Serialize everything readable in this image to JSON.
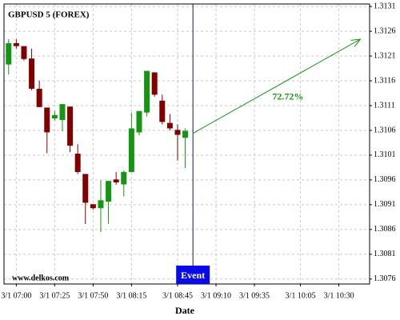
{
  "chart_data": {
    "type": "candlestick",
    "title": "GBPUSD 5 (FOREX)",
    "watermark": "www.delkos.com",
    "xlabel": "Date",
    "x": [
      415,
      420,
      425,
      430,
      435,
      440,
      445,
      450,
      455,
      460,
      465,
      470,
      475,
      480,
      485,
      490,
      495,
      500,
      505,
      510,
      515,
      520,
      525,
      530
    ],
    "open": [
      1.31193,
      1.31236,
      1.3123,
      1.31205,
      1.31144,
      1.31106,
      1.31084,
      1.31081,
      1.31108,
      1.31013,
      1.30972,
      1.30911,
      1.30903,
      1.30916,
      1.30961,
      1.30951,
      1.30976,
      1.31056,
      1.31096,
      1.31177,
      1.3112,
      1.31075,
      1.31061,
      1.31045
    ],
    "high": [
      1.31244,
      1.31244,
      1.3123,
      1.31225,
      1.3116,
      1.31106,
      1.31099,
      1.31113,
      1.31108,
      1.31032,
      1.30972,
      1.30911,
      1.30959,
      1.30958,
      1.30976,
      1.30979,
      1.31096,
      1.31099,
      1.3118,
      1.31177,
      1.31132,
      1.31093,
      1.31072,
      1.31064
    ],
    "low": [
      1.31173,
      1.31225,
      1.31201,
      1.31141,
      1.31107,
      1.31014,
      1.3108,
      1.31058,
      1.31016,
      1.30972,
      1.30871,
      1.309,
      1.30855,
      1.30871,
      1.3095,
      1.30927,
      1.30976,
      1.3105,
      1.31088,
      1.31128,
      1.31072,
      1.3106,
      1.30999,
      1.30984
    ],
    "close": [
      1.31236,
      1.3123,
      1.31204,
      1.31144,
      1.31107,
      1.31056,
      1.31091,
      1.31113,
      1.31029,
      1.30976,
      1.30914,
      1.30903,
      1.30919,
      1.30958,
      1.30955,
      1.30976,
      1.31064,
      1.31099,
      1.3118,
      1.31132,
      1.31077,
      1.31064,
      1.31051,
      1.31059
    ],
    "up_color": "#149614",
    "down_color": "#800000",
    "xlim": [
      412,
      650
    ],
    "ylim": [
      1.3075,
      1.31315
    ],
    "xticks": [
      {
        "value": 420,
        "label": "3/1 07:00"
      },
      {
        "value": 445,
        "label": "3/1 07:25"
      },
      {
        "value": 470,
        "label": "3/1 07:50"
      },
      {
        "value": 495,
        "label": "3/1 08:15"
      },
      {
        "value": 525,
        "label": "3/1 08:45"
      },
      {
        "value": 550,
        "label": "3/1 09:10"
      },
      {
        "value": 575,
        "label": "3/1 09:35"
      },
      {
        "value": 605,
        "label": "3/1 10:05"
      },
      {
        "value": 630,
        "label": "3/1 10:30"
      }
    ],
    "yticks": [
      1.3131,
      1.3126,
      1.3121,
      1.3116,
      1.3111,
      1.3106,
      1.3101,
      1.3096,
      1.3091,
      1.3086,
      1.3081,
      1.3076
    ],
    "grid": true,
    "event": {
      "x": 535,
      "label": "Event",
      "color": "#0a0ae6"
    },
    "arrow": {
      "x": [
        535,
        644
      ],
      "y": [
        1.31054,
        1.31244
      ],
      "label": "72.72%",
      "color": "#149614"
    }
  }
}
